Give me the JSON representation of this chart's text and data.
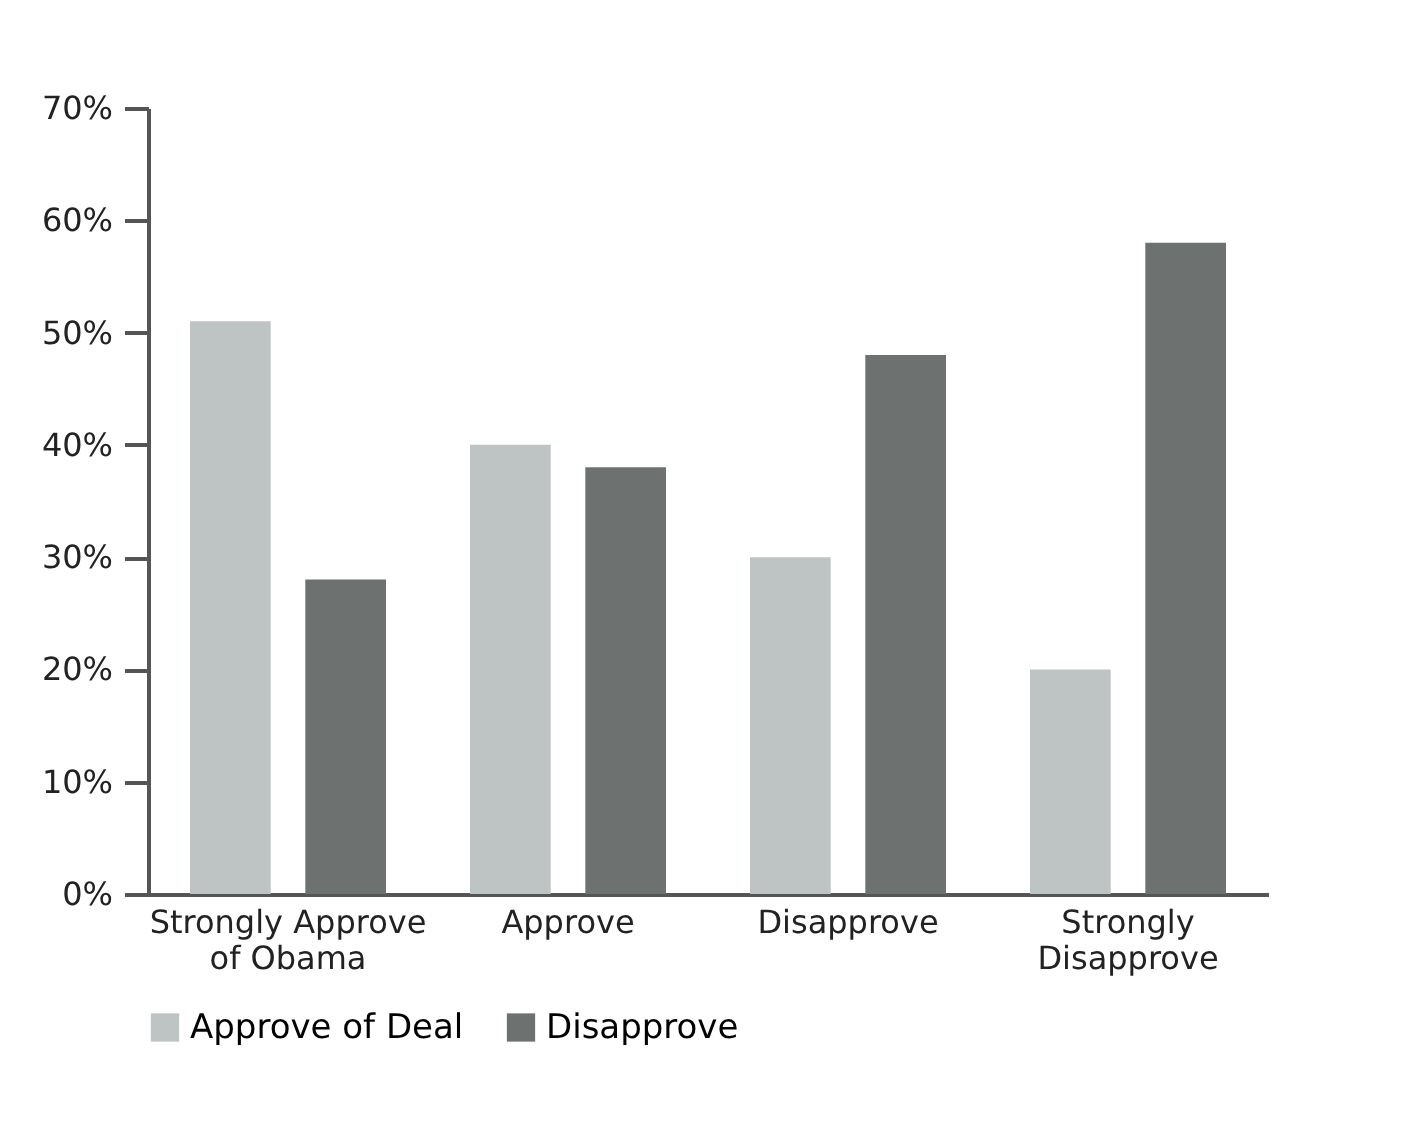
{
  "chart_data": {
    "type": "bar",
    "categories": [
      "Strongly Approve of Obama",
      "Approve",
      "Disapprove",
      "Strongly Disapprove"
    ],
    "series": [
      {
        "name": "Approve of Deal",
        "color": "#bec3c3",
        "values": [
          51,
          40,
          30,
          20
        ]
      },
      {
        "name": "Disapprove",
        "color": "#6d7271",
        "values": [
          28,
          38,
          48,
          58
        ]
      }
    ],
    "ylim": [
      0,
      70
    ],
    "yticks": [
      {
        "value": 0,
        "label": "0%"
      },
      {
        "value": 10,
        "label": "10%"
      },
      {
        "value": 20,
        "label": "20%"
      },
      {
        "value": 30,
        "label": "30%"
      },
      {
        "value": 40,
        "label": "40%"
      },
      {
        "value": 50,
        "label": "50%"
      },
      {
        "value": 60,
        "label": "60%"
      },
      {
        "value": 70,
        "label": "70%"
      }
    ],
    "grid": false,
    "legend": "bottom"
  }
}
